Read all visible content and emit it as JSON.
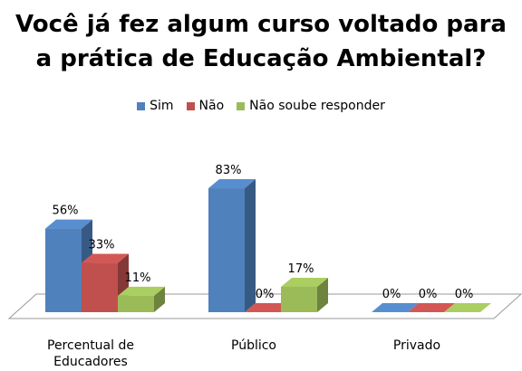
{
  "chart_data": {
    "type": "bar3d",
    "title": "Você já fez algum curso voltado para a prática de Educação Ambiental?",
    "categories": [
      "Percentual de Educadores",
      "Público",
      "Privado"
    ],
    "series": [
      {
        "name": "Sim",
        "color": "#4f81bd",
        "values": [
          56,
          83,
          0
        ],
        "value_labels": [
          "56%",
          "83%",
          "0%"
        ]
      },
      {
        "name": "Não",
        "color": "#c0504d",
        "values": [
          33,
          0,
          0
        ],
        "value_labels": [
          "33%",
          "0%",
          "0%"
        ]
      },
      {
        "name": "Não soube responder",
        "color": "#9bbb59",
        "values": [
          11,
          17,
          0
        ],
        "value_labels": [
          "11%",
          "17%",
          "0%"
        ]
      }
    ]
  }
}
